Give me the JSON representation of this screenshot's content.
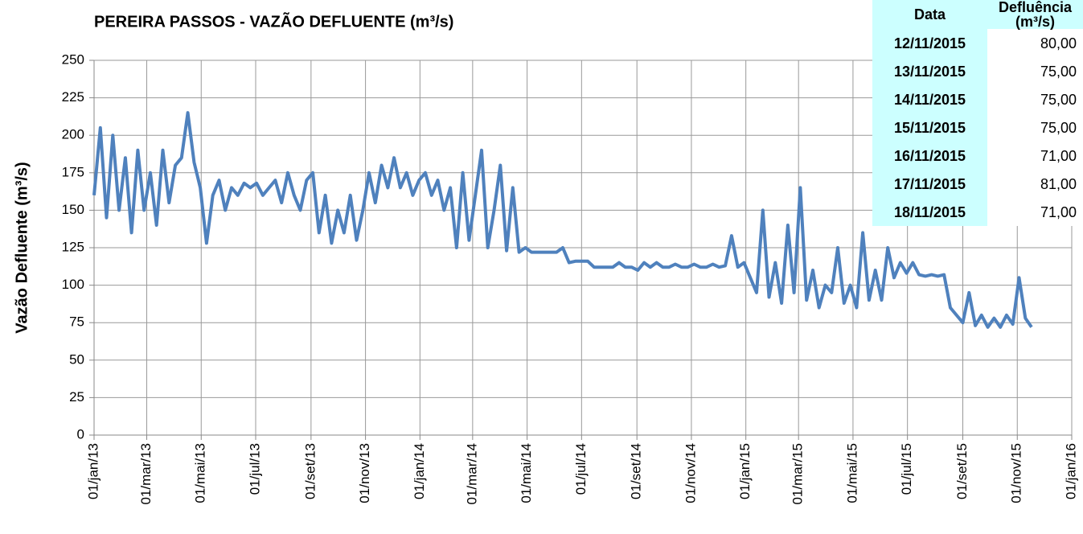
{
  "chart_data": {
    "type": "line",
    "title": "PEREIRA PASSOS - VAZÃO DEFLUENTE (m³/s)",
    "y_label": "Vazão Defluente (m³/s)",
    "x": [
      "2013-01-01",
      "2013-01-08",
      "2013-01-15",
      "2013-01-22",
      "2013-01-29",
      "2013-02-05",
      "2013-02-12",
      "2013-02-19",
      "2013-02-26",
      "2013-03-05",
      "2013-03-12",
      "2013-03-19",
      "2013-03-26",
      "2013-04-02",
      "2013-04-09",
      "2013-04-16",
      "2013-04-23",
      "2013-04-30",
      "2013-05-07",
      "2013-05-14",
      "2013-05-21",
      "2013-05-28",
      "2013-06-04",
      "2013-06-11",
      "2013-06-18",
      "2013-06-25",
      "2013-07-02",
      "2013-07-09",
      "2013-07-16",
      "2013-07-23",
      "2013-07-30",
      "2013-08-06",
      "2013-08-13",
      "2013-08-20",
      "2013-08-27",
      "2013-09-03",
      "2013-09-10",
      "2013-09-17",
      "2013-09-24",
      "2013-10-01",
      "2013-10-08",
      "2013-10-15",
      "2013-10-22",
      "2013-10-29",
      "2013-11-05",
      "2013-11-12",
      "2013-11-19",
      "2013-11-26",
      "2013-12-03",
      "2013-12-10",
      "2013-12-17",
      "2013-12-24",
      "2013-12-31",
      "2014-01-07",
      "2014-01-14",
      "2014-01-21",
      "2014-01-28",
      "2014-02-04",
      "2014-02-11",
      "2014-02-18",
      "2014-02-25",
      "2014-03-04",
      "2014-03-11",
      "2014-03-18",
      "2014-03-25",
      "2014-04-01",
      "2014-04-08",
      "2014-04-15",
      "2014-04-22",
      "2014-04-29",
      "2014-05-06",
      "2014-05-13",
      "2014-05-20",
      "2014-05-27",
      "2014-06-03",
      "2014-06-10",
      "2014-06-17",
      "2014-06-24",
      "2014-07-01",
      "2014-07-08",
      "2014-07-15",
      "2014-07-22",
      "2014-07-29",
      "2014-08-05",
      "2014-08-12",
      "2014-08-19",
      "2014-08-26",
      "2014-09-02",
      "2014-09-09",
      "2014-09-16",
      "2014-09-23",
      "2014-09-30",
      "2014-10-07",
      "2014-10-14",
      "2014-10-21",
      "2014-10-28",
      "2014-11-04",
      "2014-11-11",
      "2014-11-18",
      "2014-11-25",
      "2014-12-02",
      "2014-12-09",
      "2014-12-16",
      "2014-12-23",
      "2014-12-30",
      "2015-01-06",
      "2015-01-13",
      "2015-01-20",
      "2015-01-27",
      "2015-02-03",
      "2015-02-10",
      "2015-02-17",
      "2015-02-24",
      "2015-03-03",
      "2015-03-10",
      "2015-03-17",
      "2015-03-24",
      "2015-03-31",
      "2015-04-07",
      "2015-04-14",
      "2015-04-21",
      "2015-04-28",
      "2015-05-05",
      "2015-05-12",
      "2015-05-19",
      "2015-05-26",
      "2015-06-02",
      "2015-06-09",
      "2015-06-16",
      "2015-06-23",
      "2015-06-30",
      "2015-07-07",
      "2015-07-14",
      "2015-07-21",
      "2015-07-28",
      "2015-08-04",
      "2015-08-11",
      "2015-08-18",
      "2015-08-25",
      "2015-09-01",
      "2015-09-08",
      "2015-09-15",
      "2015-09-22",
      "2015-09-29",
      "2015-10-06",
      "2015-10-13",
      "2015-10-20",
      "2015-10-27",
      "2015-11-03",
      "2015-11-10",
      "2015-11-17"
    ],
    "series": [
      {
        "name": "Vazão Defluente",
        "color": "#4f81bd",
        "values": [
          160,
          205,
          145,
          200,
          150,
          185,
          135,
          190,
          150,
          175,
          140,
          190,
          155,
          180,
          185,
          215,
          182,
          165,
          128,
          160,
          170,
          150,
          165,
          160,
          168,
          165,
          168,
          160,
          165,
          170,
          155,
          175,
          160,
          150,
          170,
          175,
          135,
          160,
          128,
          150,
          135,
          160,
          130,
          150,
          175,
          155,
          180,
          165,
          185,
          165,
          175,
          160,
          170,
          175,
          160,
          170,
          150,
          165,
          125,
          175,
          130,
          160,
          190,
          125,
          150,
          180,
          123,
          165,
          122,
          125,
          122,
          122,
          122,
          122,
          122,
          125,
          115,
          116,
          116,
          116,
          112,
          112,
          112,
          112,
          115,
          112,
          112,
          110,
          115,
          112,
          115,
          112,
          112,
          114,
          112,
          112,
          114,
          112,
          112,
          114,
          112,
          113,
          133,
          112,
          115,
          105,
          95,
          150,
          92,
          115,
          88,
          140,
          95,
          165,
          90,
          110,
          85,
          100,
          95,
          125,
          88,
          100,
          85,
          135,
          90,
          110,
          90,
          125,
          105,
          115,
          108,
          115,
          107,
          106,
          107,
          106,
          107,
          85,
          80,
          75,
          95,
          73,
          80,
          72,
          78,
          72,
          80,
          74,
          105,
          78,
          72
        ]
      }
    ],
    "xlim": [
      "2013-01-01",
      "2016-01-01"
    ],
    "xticks": [
      {
        "value": "2013-01-01",
        "label": "01/jan/13"
      },
      {
        "value": "2013-03-01",
        "label": "01/mar/13"
      },
      {
        "value": "2013-05-01",
        "label": "01/mai/13"
      },
      {
        "value": "2013-07-01",
        "label": "01/jul/13"
      },
      {
        "value": "2013-09-01",
        "label": "01/set/13"
      },
      {
        "value": "2013-11-01",
        "label": "01/nov/13"
      },
      {
        "value": "2014-01-01",
        "label": "01/jan/14"
      },
      {
        "value": "2014-03-01",
        "label": "01/mar/14"
      },
      {
        "value": "2014-05-01",
        "label": "01/mai/14"
      },
      {
        "value": "2014-07-01",
        "label": "01/jul/14"
      },
      {
        "value": "2014-09-01",
        "label": "01/set/14"
      },
      {
        "value": "2014-11-01",
        "label": "01/nov/14"
      },
      {
        "value": "2015-01-01",
        "label": "01/jan/15"
      },
      {
        "value": "2015-03-01",
        "label": "01/mar/15"
      },
      {
        "value": "2015-05-01",
        "label": "01/mai/15"
      },
      {
        "value": "2015-07-01",
        "label": "01/jul/15"
      },
      {
        "value": "2015-09-01",
        "label": "01/set/15"
      },
      {
        "value": "2015-11-01",
        "label": "01/nov/15"
      },
      {
        "value": "2016-01-01",
        "label": "01/jan/16"
      }
    ],
    "ylim": [
      0,
      250
    ],
    "yticks": [
      0,
      25,
      50,
      75,
      100,
      125,
      150,
      175,
      200,
      225,
      250
    ],
    "grid": true
  },
  "table": {
    "headers": [
      "Data",
      "Defluência (m³/s)"
    ],
    "rows": [
      [
        "12/11/2015",
        "80,00"
      ],
      [
        "13/11/2015",
        "75,00"
      ],
      [
        "14/11/2015",
        "75,00"
      ],
      [
        "15/11/2015",
        "75,00"
      ],
      [
        "16/11/2015",
        "71,00"
      ],
      [
        "17/11/2015",
        "81,00"
      ],
      [
        "18/11/2015",
        "71,00"
      ]
    ]
  }
}
